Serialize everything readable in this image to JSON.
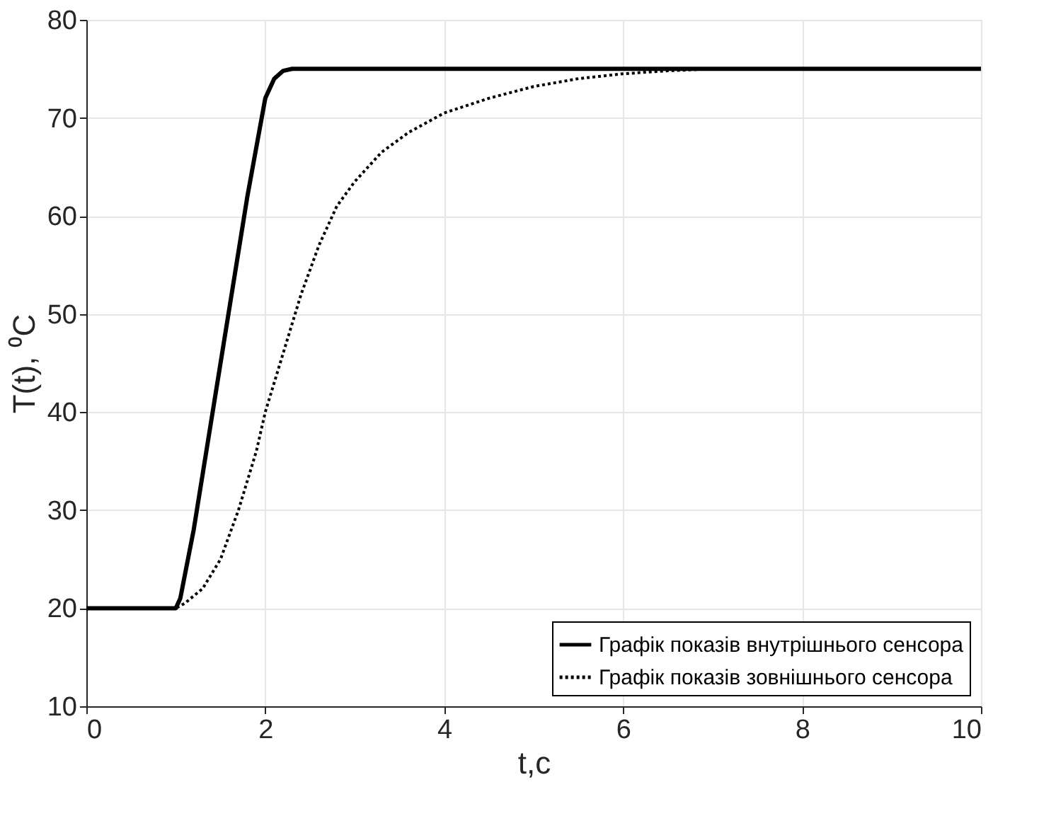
{
  "chart_data": {
    "type": "line",
    "xlabel": "t,c",
    "ylabel": "T(t), ⁰C",
    "xlim": [
      0,
      10
    ],
    "ylim": [
      10,
      80
    ],
    "xticks": [
      0,
      2,
      4,
      6,
      8,
      10
    ],
    "yticks": [
      10,
      20,
      30,
      40,
      50,
      60,
      70,
      80
    ],
    "grid": true,
    "legend": "bottom right",
    "marker": "none",
    "series": [
      {
        "name": "Графік показів внутрішнього сенсора",
        "color": "#000000",
        "line_style": "solid",
        "x": [
          0,
          0.5,
          1.0,
          1.05,
          1.2,
          1.5,
          1.8,
          2.0,
          2.1,
          2.2,
          2.3,
          2.5,
          3,
          4,
          5,
          6,
          7,
          8,
          9,
          10
        ],
        "values": [
          20,
          20,
          20,
          21,
          28,
          45,
          62,
          72,
          74,
          74.8,
          75,
          75,
          75,
          75,
          75,
          75,
          75,
          75,
          75,
          75
        ]
      },
      {
        "name": "Графік показів зовнішнього сенсора",
        "color": "#000000",
        "line_style": "dotted",
        "x": [
          0,
          0.5,
          1.0,
          1.1,
          1.3,
          1.5,
          1.7,
          1.9,
          2.0,
          2.2,
          2.4,
          2.6,
          2.8,
          3.0,
          3.3,
          3.6,
          4.0,
          4.5,
          5.0,
          5.5,
          6,
          6.5,
          7,
          8,
          9,
          10
        ],
        "values": [
          20,
          20,
          20,
          20.5,
          22,
          25,
          30,
          36,
          40,
          46,
          52,
          57,
          61,
          63.5,
          66.5,
          68.5,
          70.5,
          72,
          73.2,
          74,
          74.5,
          74.8,
          75,
          75,
          75,
          75
        ]
      }
    ]
  }
}
